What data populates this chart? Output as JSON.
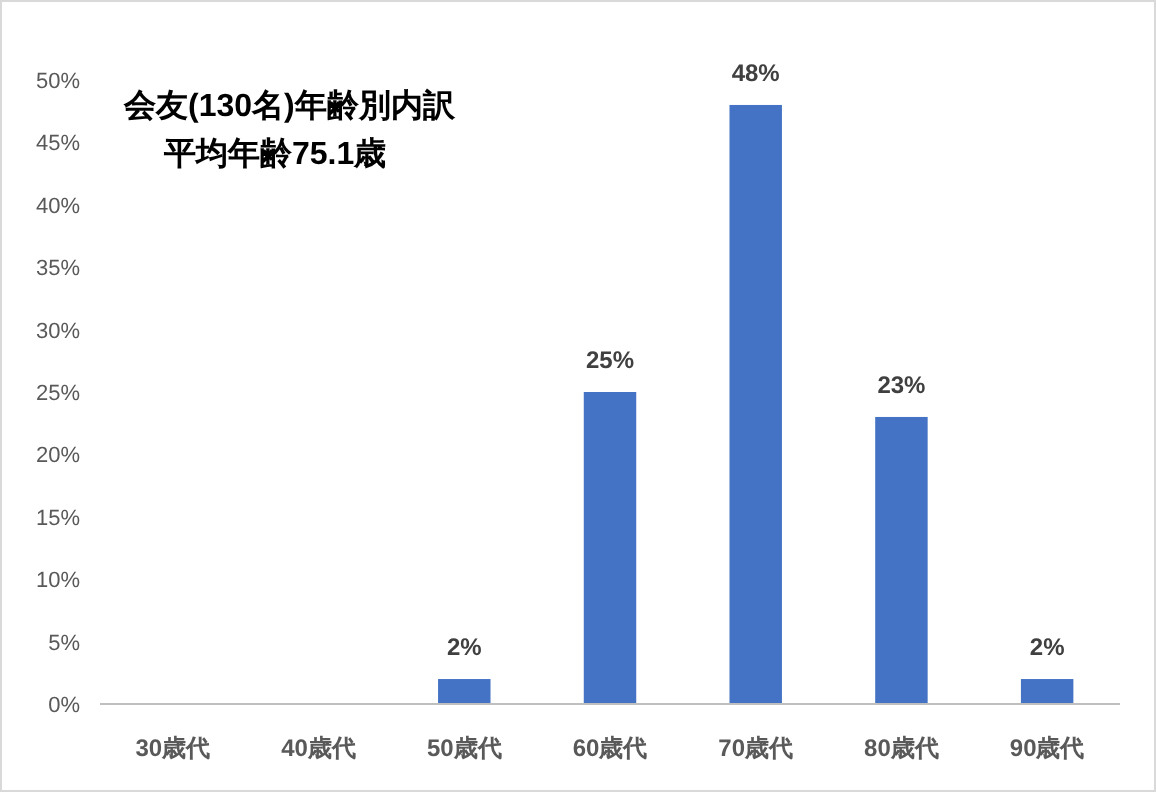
{
  "chart_data": {
    "type": "bar",
    "title": "会友(130名)年齢別内訳",
    "subtitle": "平均年齢75.1歳",
    "categories": [
      "30歳代",
      "40歳代",
      "50歳代",
      "60歳代",
      "70歳代",
      "80歳代",
      "90歳代"
    ],
    "values": [
      0,
      0,
      2,
      25,
      48,
      23,
      2
    ],
    "value_labels": [
      null,
      null,
      "2%",
      "25%",
      "48%",
      "23%",
      "2%"
    ],
    "color": "#4472c4",
    "ylim": [
      0,
      50
    ],
    "yticks": [
      {
        "value": 0,
        "label": "0%"
      },
      {
        "value": 5,
        "label": "5%"
      },
      {
        "value": 10,
        "label": "10%"
      },
      {
        "value": 15,
        "label": "15%"
      },
      {
        "value": 20,
        "label": "20%"
      },
      {
        "value": 25,
        "label": "25%"
      },
      {
        "value": 30,
        "label": "30%"
      },
      {
        "value": 35,
        "label": "35%"
      },
      {
        "value": 40,
        "label": "40%"
      },
      {
        "value": 45,
        "label": "45%"
      },
      {
        "value": 50,
        "label": "50%"
      }
    ],
    "grid": false
  }
}
